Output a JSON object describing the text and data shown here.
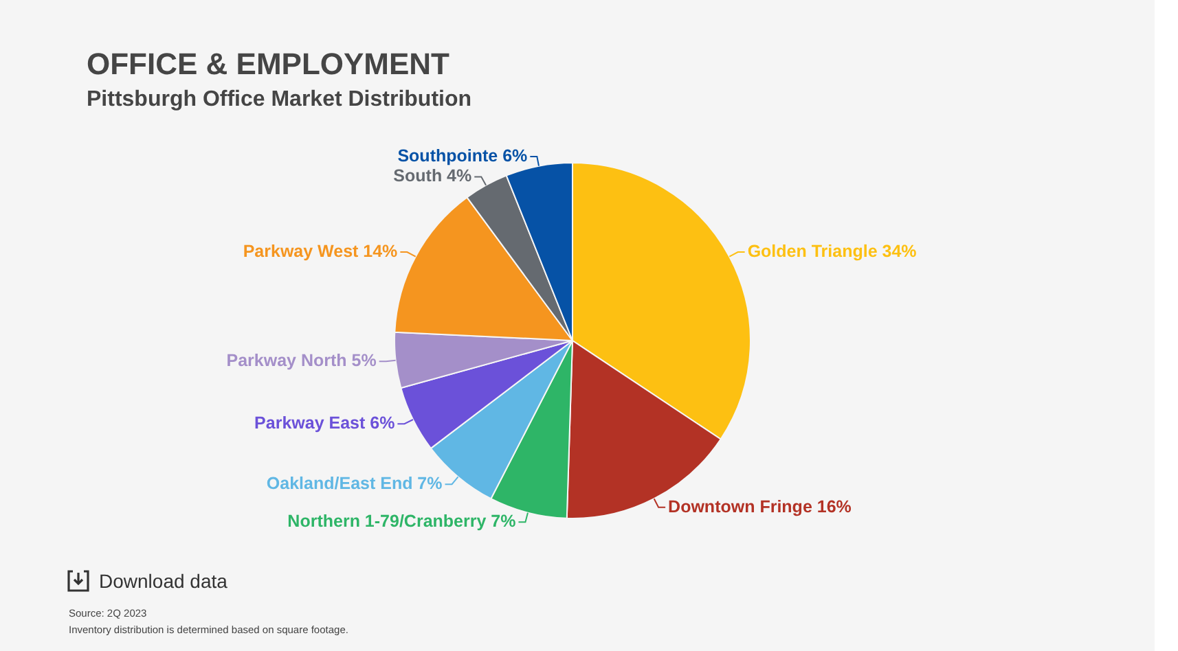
{
  "chart_data": {
    "type": "pie",
    "title": "OFFICE & EMPLOYMENT",
    "subtitle": "Pittsburgh Office Market Distribution",
    "categories": [
      "Golden Triangle",
      "Downtown Fringe",
      "Northern 1-79/Cranberry",
      "Oakland/East End",
      "Parkway East",
      "Parkway North",
      "Parkway West",
      "South",
      "Southpointe"
    ],
    "values": [
      34,
      16,
      7,
      7,
      6,
      5,
      14,
      4,
      6
    ],
    "value_labels": [
      "34%",
      "16%",
      "7%",
      "7%",
      "6%",
      "5%",
      "14%",
      "4%",
      "6%"
    ],
    "colors": [
      "#fdc012",
      "#b33225",
      "#2eb567",
      "#60b7e4",
      "#6b51d9",
      "#a48fc9",
      "#f5951f",
      "#656a70",
      "#0652a6"
    ],
    "annotations": [
      "Download data",
      "Source: 2Q 2023",
      "Inventory distribution is determined based on square footage."
    ],
    "legend": false
  }
}
